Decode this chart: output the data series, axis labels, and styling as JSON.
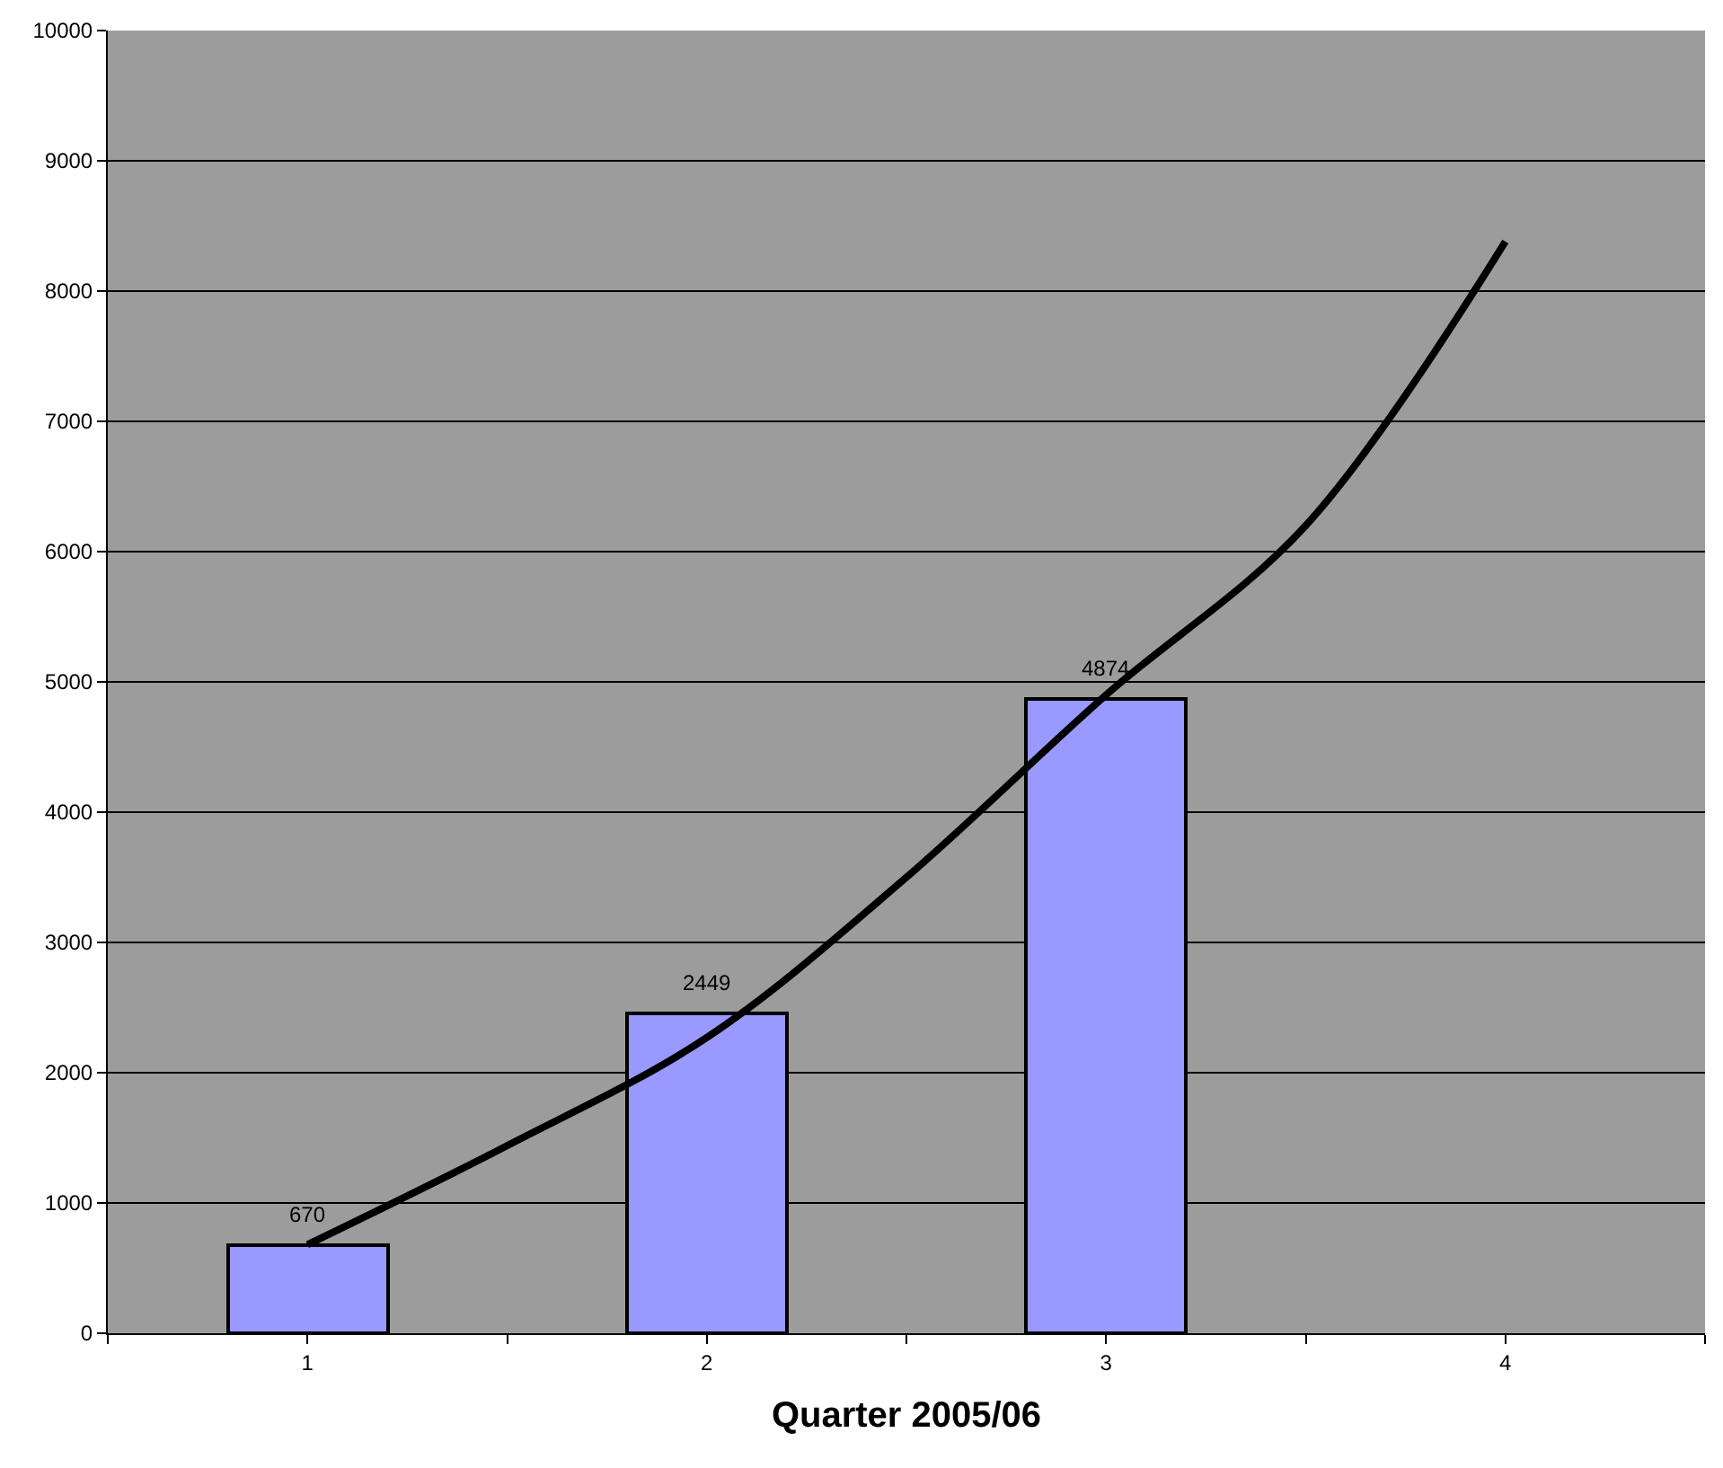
{
  "chart_data": {
    "type": "bar",
    "xlabel": "Quarter 2005/06",
    "x": [
      1,
      2,
      3
    ],
    "xlim": [
      0.5,
      4.5
    ],
    "xticks": [
      {
        "value": 0.5,
        "label": null
      },
      1,
      {
        "value": 1.5,
        "label": null
      },
      2,
      {
        "value": 2.5,
        "label": null
      },
      3,
      {
        "value": 3.5,
        "label": null
      },
      4,
      {
        "value": 4.5,
        "label": null
      }
    ],
    "ylim": [
      0,
      10000
    ],
    "yticks": [
      0,
      1000,
      2000,
      3000,
      4000,
      5000,
      6000,
      7000,
      8000,
      9000,
      10000
    ],
    "grid": "y",
    "series": [
      {
        "type": "line",
        "color": "#000000",
        "x": [
          1,
          1.5,
          2,
          2.5,
          3,
          3.5,
          4
        ],
        "values": [
          680,
          1440,
          2270,
          3500,
          4900,
          6200,
          8380
        ],
        "marker": "none",
        "line_style": "solid"
      },
      {
        "color": "#9999ff",
        "values": [
          670,
          2449,
          4874
        ],
        "value_labels": [
          "670",
          "2449",
          "4874"
        ]
      }
    ]
  }
}
